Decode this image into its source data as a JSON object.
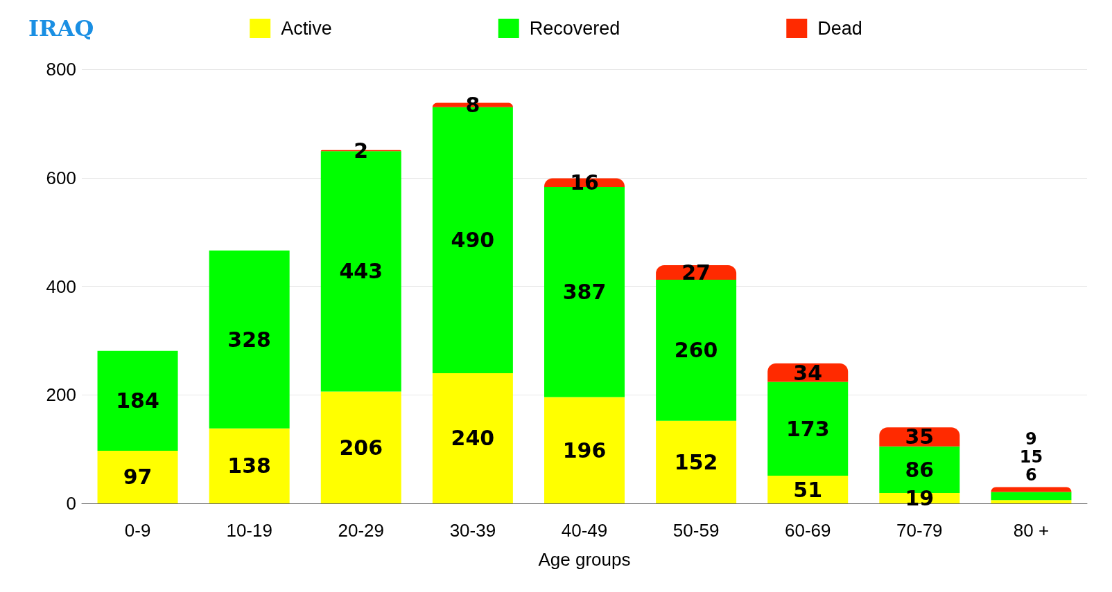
{
  "chart_data": {
    "type": "bar",
    "title": "IRAQ",
    "xlabel": "Age groups",
    "stacked": true,
    "data_labels": true,
    "legend": "top",
    "grid": "y",
    "categories": [
      "0-9",
      "10-19",
      "20-29",
      "30-39",
      "40-49",
      "50-59",
      "60-69",
      "70-79",
      "80 +"
    ],
    "ylim": [
      0,
      800
    ],
    "yticks": [
      0,
      200,
      400,
      600,
      800
    ],
    "series": [
      {
        "name": "Active",
        "color": "#ffff00",
        "values": [
          97,
          138,
          206,
          240,
          196,
          152,
          51,
          19,
          6
        ]
      },
      {
        "name": "Recovered",
        "color": "#00ff00",
        "values": [
          184,
          328,
          443,
          490,
          387,
          260,
          173,
          86,
          15
        ]
      },
      {
        "name": "Dead",
        "color": "#ff2a00",
        "values": [
          null,
          null,
          2,
          8,
          16,
          27,
          34,
          35,
          9
        ]
      }
    ]
  }
}
